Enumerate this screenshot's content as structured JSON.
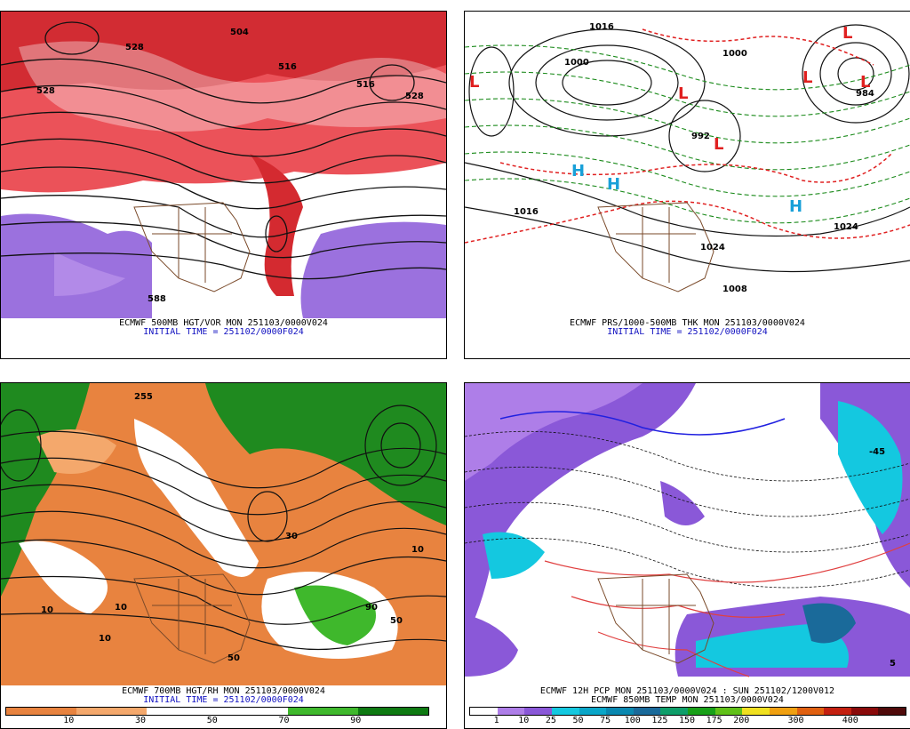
{
  "panels": {
    "tl": {
      "line1": "ECMWF 500MB HGT/VOR MON 251103/0000V024",
      "line2": "INITIAL TIME = 251102/0000F024"
    },
    "tr": {
      "line1": "ECMWF PRS/1000-500MB THK MON 251103/0000V024",
      "line2": "INITIAL TIME = 251102/0000F024"
    },
    "bl": {
      "line1": "ECMWF 700MB HGT/RH MON 251103/0000V024",
      "line2": "INITIAL TIME = 251102/0000F024"
    },
    "br": {
      "line1": "ECMWF 12H PCP MON 251103/0000V024 : SUN 251102/1200V012",
      "line2": "ECMWF 850MB TEMP MON 251103/0000V024"
    }
  },
  "map_labels": {
    "tl": [
      "528",
      "504",
      "516",
      "516",
      "528",
      "588",
      "528"
    ],
    "tr": [
      "L",
      "L",
      "L",
      "L",
      "L",
      "L",
      "H",
      "H",
      "H",
      "1000",
      "1016",
      "1024",
      "1016",
      "1024",
      "1008",
      "1000",
      "984",
      "992"
    ],
    "bl": [
      "10",
      "10",
      "10",
      "30",
      "50",
      "90",
      "50",
      "10",
      "255"
    ],
    "br": [
      "-45",
      "5"
    ]
  },
  "rh_legend": {
    "colors": [
      "#e8833f",
      "#f4a86c",
      "#ffffff",
      "#ffffff",
      "#3fb82c",
      "#0e7a12"
    ],
    "ticks": [
      "10",
      "30",
      "50",
      "70",
      "90"
    ]
  },
  "pcp_legend": {
    "colors": [
      "#ffffff",
      "#ae7ee8",
      "#8a58d8",
      "#14c8e0",
      "#0aa6c8",
      "#0a88b0",
      "#1a6a9a",
      "#0e9e6a",
      "#18a018",
      "#60c018",
      "#f0e020",
      "#f0a010",
      "#e06010",
      "#c42010",
      "#8a0a0a",
      "#500a0a"
    ],
    "ticks": [
      "1",
      "10",
      "25",
      "50",
      "75",
      "100",
      "125",
      "150",
      "175",
      "200",
      "300",
      "400"
    ]
  }
}
